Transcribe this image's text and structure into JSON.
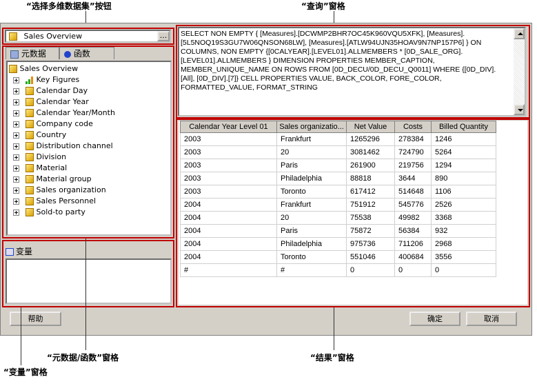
{
  "callouts": {
    "cube_button": "“选择多维数据集”按钮",
    "query": "“查询”窗格",
    "metadata": "“元数据/函数”窗格",
    "variables": "“变量”窗格",
    "results": "“结果”窗格"
  },
  "cube_selector": {
    "value": "Sales Overview",
    "browse": "..."
  },
  "tabs": [
    {
      "label": "元数据",
      "icon": "cube-stack-icon"
    },
    {
      "label": "函数",
      "icon": "pushpin-icon"
    }
  ],
  "tree": {
    "root": "Sales Overview",
    "items": [
      "Key Figures",
      "Calendar Day",
      "Calendar Year",
      "Calendar Year/Month",
      "Company code",
      "Country",
      "Distribution channel",
      "Division",
      "Material",
      "Material group",
      "Sales organization",
      "Sales Personnel",
      "Sold-to party"
    ]
  },
  "variables": {
    "title": "变量"
  },
  "query": "SELECT NON EMPTY { [Measures].[DCWMP2BHR7OC45K960VQU5XFK], [Measures].[5L5NOQ19S3GU7W06QNSON68LW], [Measures].[ATLW94UJN35HOAV9N7NP157P6] } ON COLUMNS, NON EMPTY {[0CALYEAR].[LEVEL01].ALLMEMBERS * [0D_SALE_ORG].[LEVEL01].ALLMEMBERS } DIMENSION PROPERTIES MEMBER_CAPTION, MEMBER_UNIQUE_NAME ON ROWS FROM [0D_DECU/0D_DECU_Q0011] WHERE {[0D_DIV].[All], [0D_DIV].[7]} CELL PROPERTIES VALUE, BACK_COLOR, FORE_COLOR, FORMATTED_VALUE, FORMAT_STRING",
  "results": {
    "columns": [
      "Calendar Year Level 01",
      "Sales organizatio...",
      "Net Value",
      "Costs",
      "Billed Quantity"
    ],
    "rows": [
      [
        "2003",
        "Frankfurt",
        "1265296",
        "278384",
        "1246"
      ],
      [
        "2003",
        "20",
        "3081462",
        "724790",
        "5264"
      ],
      [
        "2003",
        "Paris",
        "261900",
        "219756",
        "1294"
      ],
      [
        "2003",
        "Philadelphia",
        "88818",
        "3644",
        "890"
      ],
      [
        "2003",
        "Toronto",
        "617412",
        "514648",
        "1106"
      ],
      [
        "2004",
        "Frankfurt",
        "751912",
        "545776",
        "2526"
      ],
      [
        "2004",
        "20",
        "75538",
        "49982",
        "3368"
      ],
      [
        "2004",
        "Paris",
        "75872",
        "56384",
        "932"
      ],
      [
        "2004",
        "Philadelphia",
        "975736",
        "711206",
        "2968"
      ],
      [
        "2004",
        "Toronto",
        "551046",
        "400684",
        "3556"
      ],
      [
        "#",
        "#",
        "0",
        "0",
        "0"
      ]
    ]
  },
  "buttons": {
    "help": "帮助",
    "ok": "确定",
    "cancel": "取消"
  },
  "colors": {
    "callout_border": "#c00000"
  }
}
